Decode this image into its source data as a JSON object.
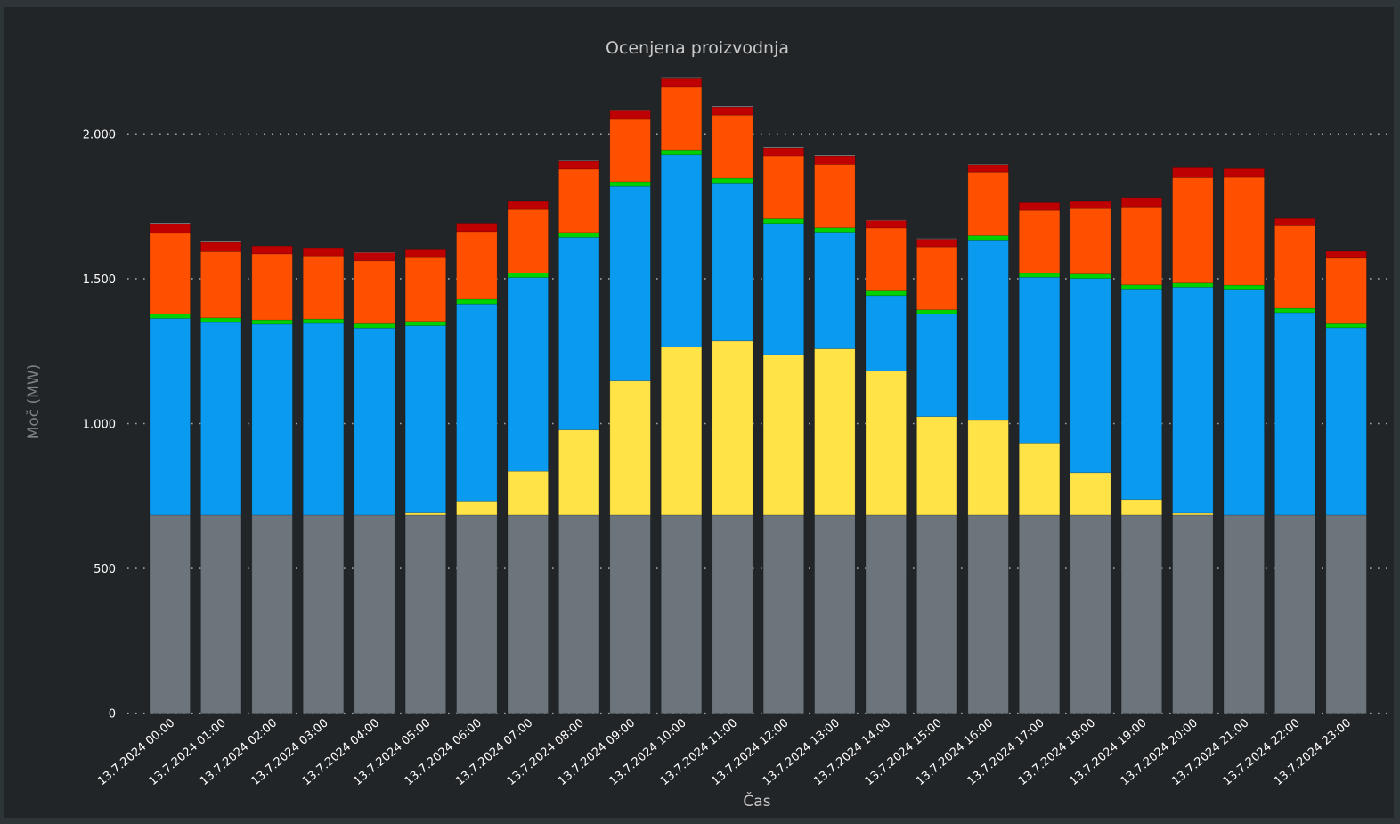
{
  "chart_data": {
    "type": "bar",
    "stacked": true,
    "title": "Ocenjena proizvodnja",
    "xlabel": "Čas",
    "ylabel": "Moč (MW)",
    "ylim": [
      0,
      2200
    ],
    "yticks": [
      0,
      500,
      1000,
      1500,
      2000
    ],
    "ytick_labels": [
      "0",
      "500",
      "1.000",
      "1.500",
      "2.000"
    ],
    "grid": "horizontal-dotted",
    "legend": "none",
    "categories": [
      "13.7.2024 00:00",
      "13.7.2024 01:00",
      "13.7.2024 02:00",
      "13.7.2024 03:00",
      "13.7.2024 04:00",
      "13.7.2024 05:00",
      "13.7.2024 06:00",
      "13.7.2024 07:00",
      "13.7.2024 08:00",
      "13.7.2024 09:00",
      "13.7.2024 10:00",
      "13.7.2024 11:00",
      "13.7.2024 12:00",
      "13.7.2024 13:00",
      "13.7.2024 14:00",
      "13.7.2024 15:00",
      "13.7.2024 16:00",
      "13.7.2024 17:00",
      "13.7.2024 18:00",
      "13.7.2024 19:00",
      "13.7.2024 20:00",
      "13.7.2024 21:00",
      "13.7.2024 22:00",
      "13.7.2024 23:00"
    ],
    "series": [
      {
        "name": "gray-base",
        "color": "#6b757b",
        "values": [
          685,
          685,
          685,
          685,
          685,
          685,
          685,
          685,
          685,
          685,
          685,
          685,
          685,
          685,
          685,
          685,
          685,
          685,
          685,
          685,
          685,
          685,
          685,
          685
        ]
      },
      {
        "name": "yellow",
        "color": "#ffe347",
        "values": [
          0,
          0,
          0,
          0,
          0,
          7,
          48,
          150,
          293,
          462,
          579,
          600,
          553,
          573,
          496,
          339,
          326,
          248,
          145,
          53,
          6,
          0,
          0,
          0
        ]
      },
      {
        "name": "blue",
        "color": "#0a9bf0",
        "values": [
          678,
          664,
          658,
          661,
          645,
          646,
          680,
          669,
          665,
          672,
          664,
          546,
          453,
          403,
          261,
          354,
          623,
          572,
          671,
          727,
          780,
          779,
          698,
          646
        ]
      },
      {
        "name": "green",
        "color": "#00d100",
        "values": [
          16,
          16,
          15,
          15,
          15,
          15,
          16,
          16,
          17,
          16,
          17,
          16,
          16,
          15,
          16,
          15,
          15,
          14,
          15,
          14,
          14,
          14,
          15,
          14
        ]
      },
      {
        "name": "orange",
        "color": "#ff5000",
        "values": [
          278,
          229,
          228,
          218,
          217,
          220,
          234,
          219,
          218,
          215,
          216,
          218,
          217,
          219,
          217,
          217,
          219,
          217,
          226,
          269,
          364,
          372,
          285,
          226
        ]
      },
      {
        "name": "dark-red",
        "color": "#be0000",
        "values": [
          32,
          32,
          27,
          28,
          29,
          27,
          29,
          28,
          28,
          30,
          30,
          28,
          28,
          29,
          27,
          27,
          26,
          27,
          25,
          32,
          34,
          30,
          25,
          24
        ]
      },
      {
        "name": "other-gray",
        "color": "#8a8d8f",
        "values": [
          4,
          3,
          0,
          0,
          1,
          0,
          0,
          0,
          2,
          3,
          5,
          3,
          3,
          3,
          1,
          2,
          2,
          0,
          0,
          0,
          0,
          0,
          0,
          0
        ]
      }
    ]
  }
}
